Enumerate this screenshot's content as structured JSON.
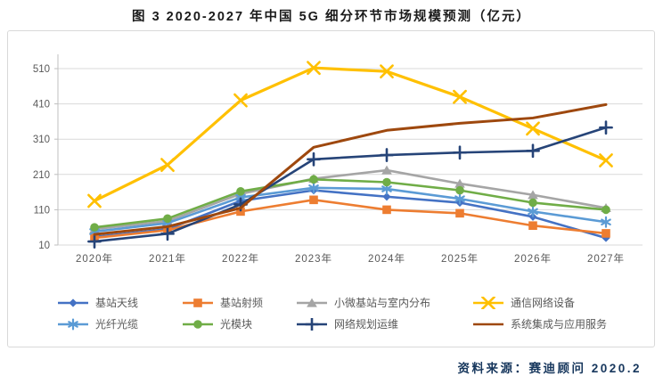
{
  "title": "图 3 2020-2027 年中国 5G 细分环节市场规模预测（亿元）",
  "source_note": "资料来源：赛迪顾问  2020.2",
  "chart_data": {
    "type": "line",
    "title": "图 3 2020-2027 年中国 5G 细分环节市场规模预测（亿元）",
    "xlabel": "",
    "ylabel": "",
    "categories": [
      "2020年",
      "2021年",
      "2022年",
      "2023年",
      "2024年",
      "2025年",
      "2026年",
      "2027年"
    ],
    "y_ticks": [
      10,
      110,
      210,
      310,
      410,
      510
    ],
    "ylim": [
      10,
      540
    ],
    "grid": true,
    "legend_position": "bottom",
    "series": [
      {
        "name": "基站天线",
        "color": "#4472C4",
        "marker": "diamond",
        "values": [
          33,
          55,
          135,
          165,
          147,
          130,
          90,
          30
        ]
      },
      {
        "name": "基站射频",
        "color": "#ED7D31",
        "marker": "square",
        "values": [
          30,
          52,
          105,
          138,
          110,
          100,
          65,
          43
        ]
      },
      {
        "name": "小微基站与室内分布",
        "color": "#A5A5A5",
        "marker": "triangle",
        "values": [
          55,
          78,
          155,
          198,
          222,
          184,
          152,
          115
        ]
      },
      {
        "name": "通信网络设备",
        "color": "#FFC000",
        "marker": "x",
        "values": [
          135,
          237,
          420,
          512,
          502,
          430,
          340,
          250
        ]
      },
      {
        "name": "光纤光缆",
        "color": "#5B9BD5",
        "marker": "asterisk",
        "values": [
          48,
          72,
          145,
          172,
          169,
          141,
          105,
          75
        ]
      },
      {
        "name": "光模块",
        "color": "#70AD47",
        "marker": "circle",
        "values": [
          60,
          85,
          162,
          196,
          188,
          165,
          130,
          110
        ]
      },
      {
        "name": "网络规划运维",
        "color": "#264478",
        "marker": "plus",
        "values": [
          20,
          42,
          125,
          253,
          265,
          272,
          277,
          343
        ]
      },
      {
        "name": "系统集成与应用服务",
        "color": "#9E480E",
        "marker": "none",
        "values": [
          40,
          62,
          115,
          287,
          335,
          355,
          370,
          408
        ]
      }
    ]
  }
}
